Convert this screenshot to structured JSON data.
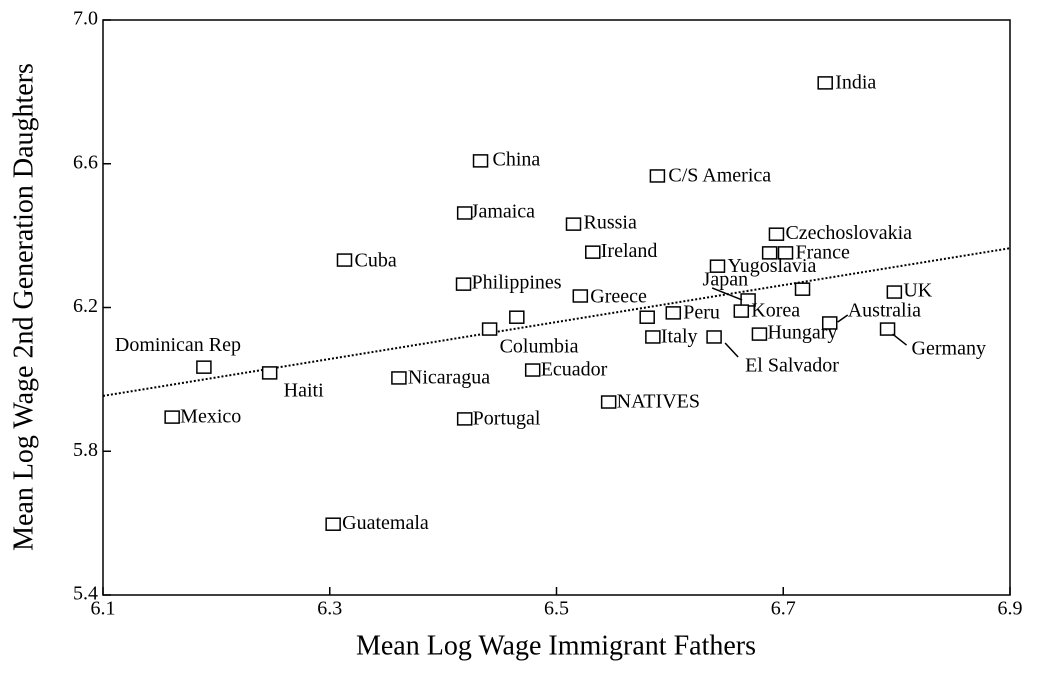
{
  "chart_data": {
    "type": "scatter",
    "xlabel": "Mean Log Wage Immigrant Fathers",
    "ylabel": "Mean Log Wage 2nd Generation Daughters",
    "xlim": [
      6.1,
      6.9
    ],
    "ylim": [
      5.4,
      7.0
    ],
    "xticks": [
      6.1,
      6.3,
      6.5,
      6.7,
      6.9
    ],
    "yticks": [
      5.4,
      5.8,
      6.2,
      6.6,
      {
        "value": 7.0,
        "label": "7.0"
      }
    ],
    "labels": [
      "India",
      "China",
      "C/S America",
      "Jamaica",
      "Russia",
      "Ireland",
      "Czechoslovakia",
      null,
      "France",
      "Cuba",
      "Yugoslavia",
      "Philippines",
      "Greece",
      "Japan",
      null,
      "UK",
      "Korea",
      "Peru",
      null,
      null,
      "Columbia",
      "Australia",
      "Germany",
      "Hungary",
      "Italy",
      "El Salvador",
      "Dominican Rep",
      "Haiti",
      "Nicaragua",
      "Ecuador",
      "NATIVES",
      "Mexico",
      "Portugal",
      "Guatemala"
    ],
    "x": [
      6.737,
      6.433,
      6.589,
      6.419,
      6.515,
      6.532,
      6.694,
      6.688,
      6.702,
      6.313,
      6.642,
      6.418,
      6.521,
      6.669,
      6.717,
      6.798,
      6.663,
      6.603,
      6.58,
      6.465,
      6.441,
      6.741,
      6.792,
      6.679,
      6.585,
      6.639,
      6.189,
      6.247,
      6.361,
      6.479,
      6.546,
      6.161,
      6.419,
      6.303
    ],
    "y": [
      6.825,
      6.608,
      6.566,
      6.463,
      6.432,
      6.354,
      6.404,
      6.352,
      6.352,
      6.332,
      6.315,
      6.265,
      6.232,
      6.221,
      6.251,
      6.243,
      6.19,
      6.185,
      6.173,
      6.173,
      6.14,
      6.157,
      6.14,
      6.126,
      6.118,
      6.118,
      6.034,
      6.018,
      6.004,
      6.026,
      5.937,
      5.895,
      5.89,
      5.597
    ],
    "trendline": {
      "x": [
        6.1,
        6.9
      ],
      "y": [
        5.954,
        6.365
      ]
    }
  }
}
